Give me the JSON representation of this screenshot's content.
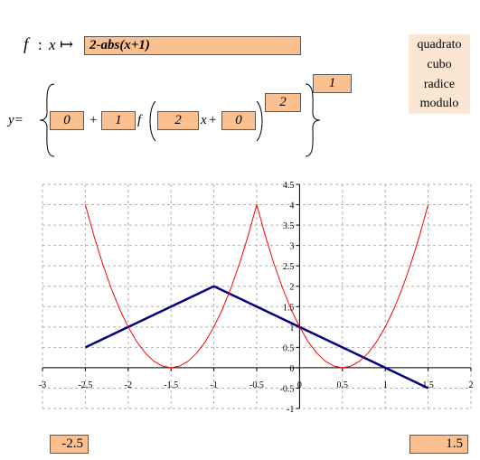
{
  "header": {
    "f_symbol": "f",
    "colon": ":",
    "x_symbol": "x",
    "maps_to": "↦",
    "function_expr": "2-abs(x+1)"
  },
  "menu": {
    "items": [
      "quadrato",
      "cubo",
      "radice",
      "modulo"
    ]
  },
  "formula": {
    "y_label": "y=",
    "c_value": "0",
    "plus1": "+",
    "a_value": "1",
    "f_symbol": "f",
    "b_value": "2",
    "x_symbol": "x",
    "plus2": "+",
    "d_value": "0",
    "power_value": "2",
    "outer_power_value": "1"
  },
  "range": {
    "x_min": "-2.5",
    "x_max": "1.5"
  },
  "chart_data": {
    "type": "line",
    "xlim": [
      -3,
      2
    ],
    "ylim": [
      -1,
      4.5
    ],
    "x_ticks": [
      "-3",
      "-2.5",
      "-2",
      "-1.5",
      "-1",
      "-0.5",
      "0",
      "0.5",
      "1",
      "1.5",
      "2"
    ],
    "y_ticks": [
      "-1",
      "-0.5",
      "0",
      "0.5",
      "1",
      "1.5",
      "2",
      "2.5",
      "3",
      "3.5",
      "4",
      "4.5"
    ],
    "grid": true,
    "series": [
      {
        "color": "#000080",
        "x": [
          -2.5,
          -1,
          1.5
        ],
        "y": [
          0.5,
          2,
          -0.5
        ]
      },
      {
        "color": "#ff0000",
        "x": [
          -2.5,
          -2.4,
          -2.3,
          -2.2,
          -2.1,
          -2.0,
          -1.9,
          -1.8,
          -1.7,
          -1.6,
          -1.5,
          -1.4,
          -1.3,
          -1.2,
          -1.1,
          -1.0,
          -0.9,
          -0.8,
          -0.7,
          -0.6,
          -0.5,
          -0.4,
          -0.3,
          -0.2,
          -0.1,
          0.0,
          0.1,
          0.2,
          0.3,
          0.4,
          0.5,
          0.6,
          0.7,
          0.8,
          0.9,
          1.0,
          1.1,
          1.2,
          1.3,
          1.4,
          1.5
        ],
        "y": [
          4,
          3.24,
          2.56,
          1.96,
          1.44,
          1,
          0.64,
          0.36,
          0.16,
          0.04,
          0,
          0.04,
          0.16,
          0.36,
          0.64,
          1,
          1.44,
          1.96,
          2.56,
          3.24,
          4,
          3.24,
          2.56,
          1.96,
          1.44,
          1,
          0.64,
          0.36,
          0.16,
          0.04,
          0,
          0.04,
          0.16,
          0.36,
          0.64,
          1,
          1.44,
          1.96,
          2.56,
          3.24,
          4
        ]
      }
    ]
  }
}
